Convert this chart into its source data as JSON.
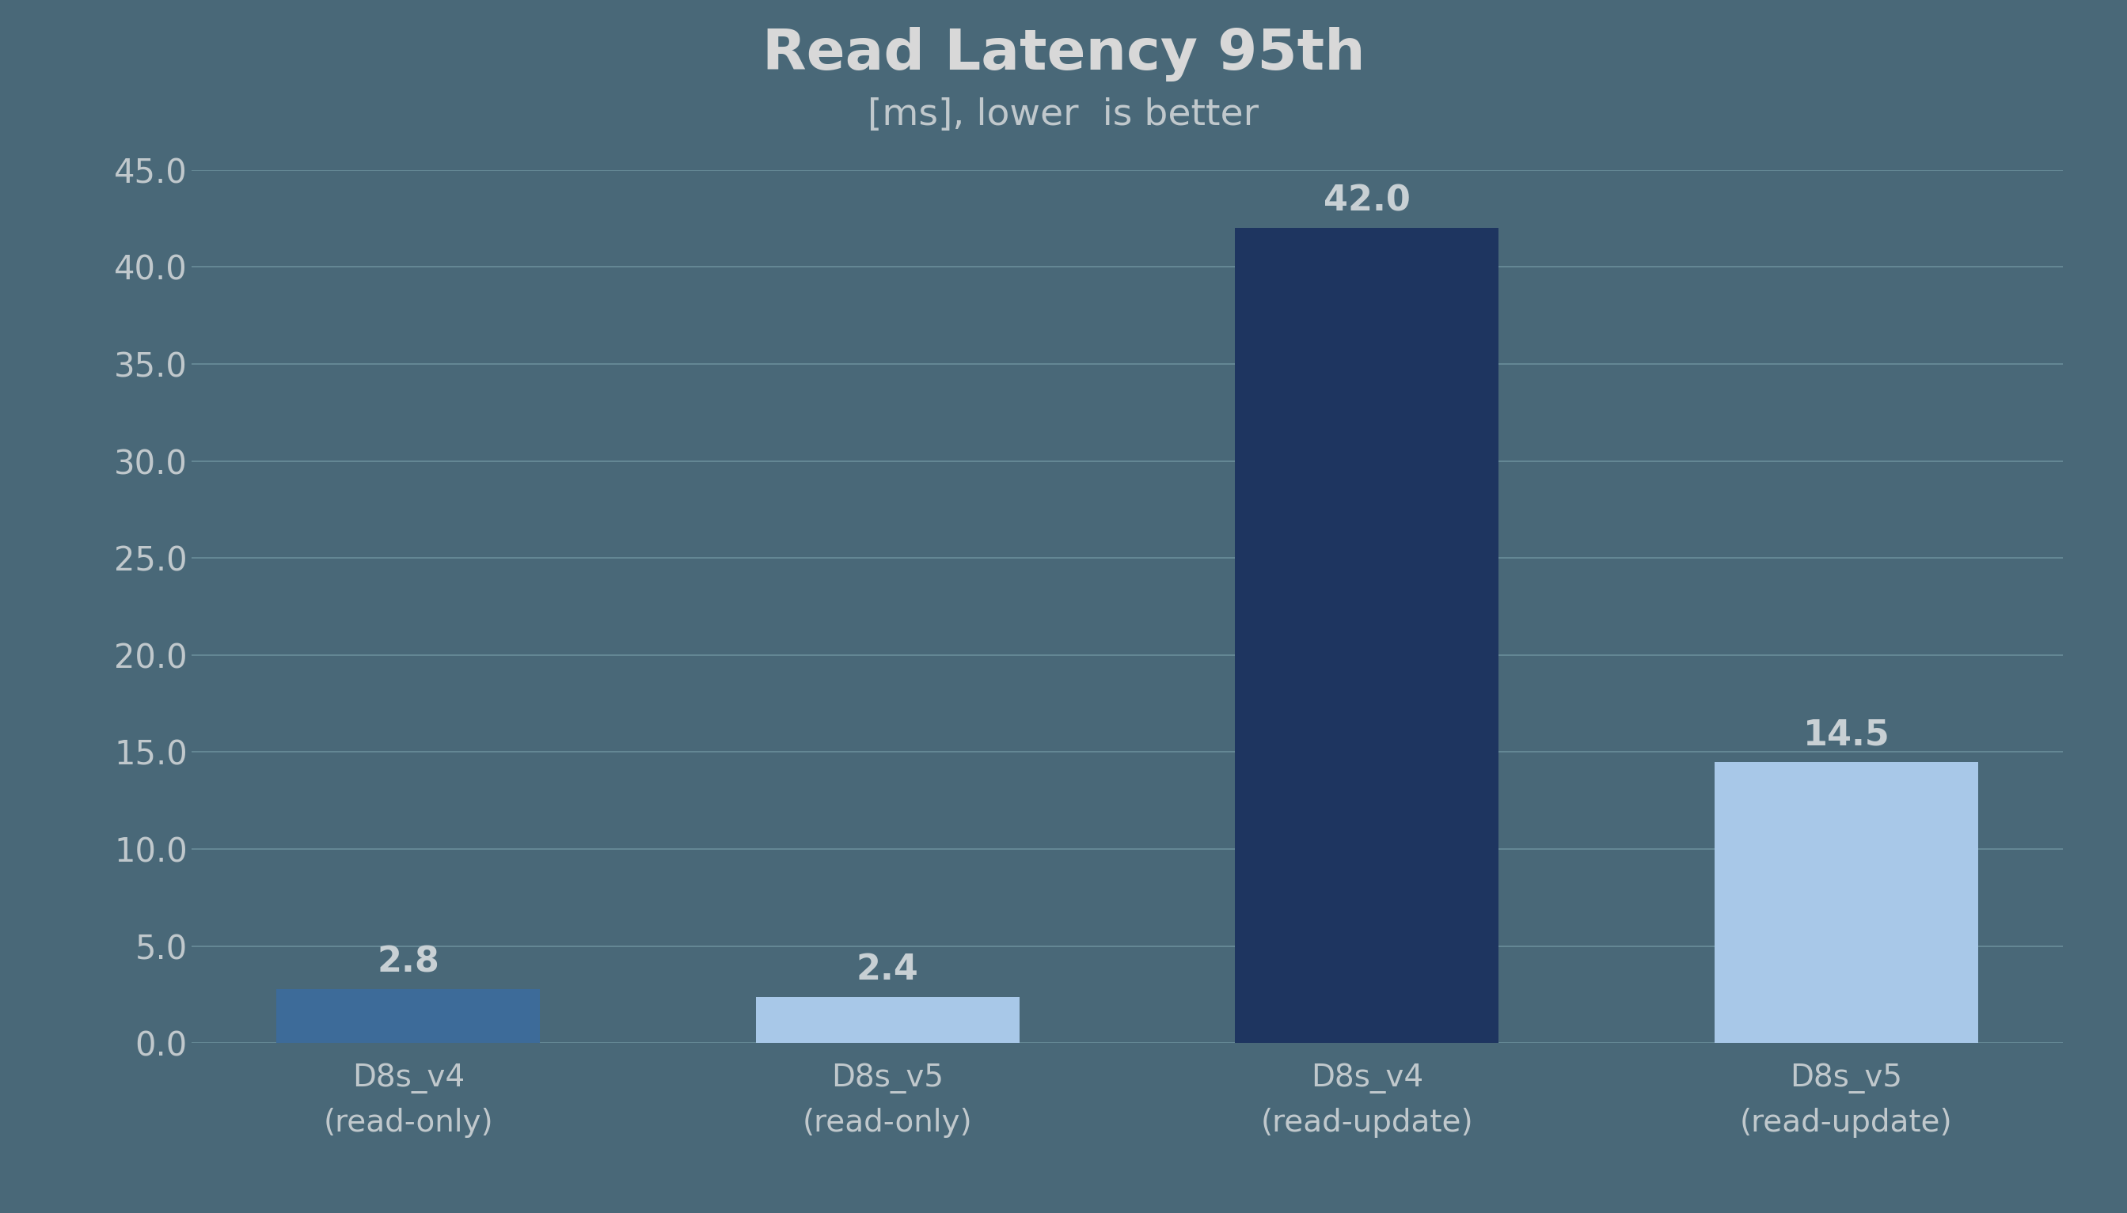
{
  "title": "Read Latency 95th",
  "subtitle": "[ms], lower  is better",
  "categories": [
    "D8s_v4\n(read-only)",
    "D8s_v5\n(read-only)",
    "D8s_v4\n(read-update)",
    "D8s_v5\n(read-update)"
  ],
  "values": [
    2.8,
    2.4,
    42.0,
    14.5
  ],
  "bar_colors": [
    "#3d6b99",
    "#a8c8e8",
    "#1e3560",
    "#a8c8e8"
  ],
  "background_color": "#496878",
  "plot_background_color": "#496878",
  "text_color": "#c0c8cc",
  "grid_color": "#6a8e9a",
  "title_color": "#d8d8d8",
  "value_label_color": "#c8d0d4",
  "ylim": [
    0,
    45
  ],
  "yticks": [
    0.0,
    5.0,
    10.0,
    15.0,
    20.0,
    25.0,
    30.0,
    35.0,
    40.0,
    45.0
  ],
  "title_fontsize": 52,
  "subtitle_fontsize": 34,
  "tick_fontsize": 30,
  "value_fontsize": 32,
  "xlabel_fontsize": 28,
  "bar_width": 0.55
}
